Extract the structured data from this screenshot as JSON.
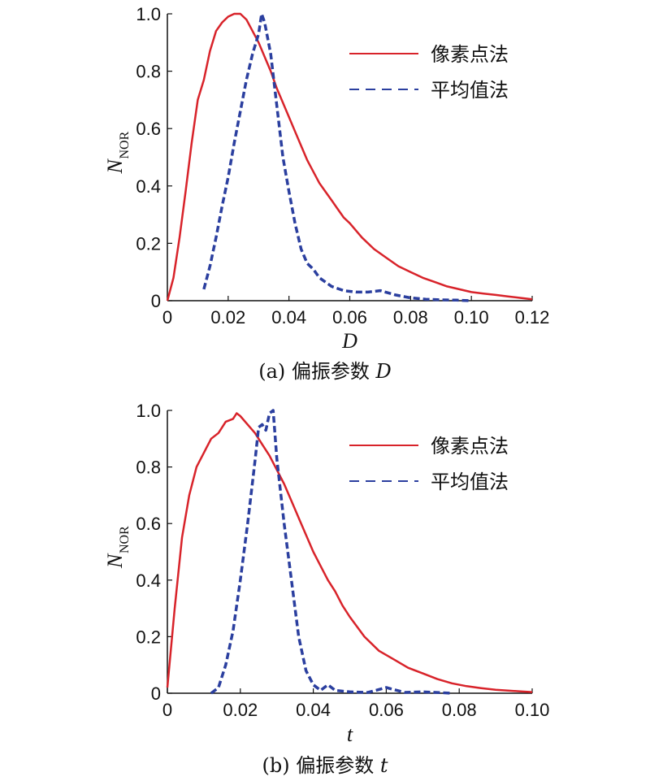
{
  "colors": {
    "series_pixel": "#d8232a",
    "series_mean": "#2b3f9f",
    "axis": "#111111"
  },
  "chart_data": [
    {
      "type": "line",
      "caption_prefix": "(a) 偏振参数 ",
      "caption_var": "D",
      "xlabel": "D",
      "ylabel_main": "N",
      "ylabel_sub": "NOR",
      "xlim": [
        0,
        0.12
      ],
      "ylim": [
        0,
        1.0
      ],
      "xticks": [
        "0",
        "0.02",
        "0.04",
        "0.06",
        "0.08",
        "0.10",
        "0.12"
      ],
      "yticks": [
        "0",
        "0.2",
        "0.4",
        "0.6",
        "0.8",
        "1.0"
      ],
      "legend_position": "top-right",
      "series": [
        {
          "name": "像素点法",
          "style": "solid",
          "x": [
            0,
            0.002,
            0.004,
            0.006,
            0.008,
            0.01,
            0.012,
            0.014,
            0.016,
            0.018,
            0.02,
            0.022,
            0.024,
            0.026,
            0.028,
            0.03,
            0.032,
            0.034,
            0.036,
            0.038,
            0.04,
            0.042,
            0.044,
            0.046,
            0.048,
            0.05,
            0.052,
            0.054,
            0.056,
            0.058,
            0.06,
            0.064,
            0.068,
            0.072,
            0.076,
            0.08,
            0.084,
            0.088,
            0.092,
            0.096,
            0.1,
            0.104,
            0.108,
            0.112,
            0.116,
            0.12
          ],
          "y": [
            0,
            0.08,
            0.22,
            0.38,
            0.55,
            0.7,
            0.77,
            0.87,
            0.94,
            0.97,
            0.99,
            1.0,
            1.0,
            0.98,
            0.94,
            0.9,
            0.85,
            0.8,
            0.74,
            0.69,
            0.64,
            0.59,
            0.54,
            0.49,
            0.45,
            0.41,
            0.38,
            0.35,
            0.32,
            0.29,
            0.27,
            0.22,
            0.18,
            0.15,
            0.12,
            0.1,
            0.08,
            0.065,
            0.05,
            0.04,
            0.03,
            0.025,
            0.02,
            0.015,
            0.01,
            0.005
          ]
        },
        {
          "name": "平均值法",
          "style": "dashed",
          "x": [
            0.012,
            0.014,
            0.016,
            0.018,
            0.02,
            0.022,
            0.024,
            0.026,
            0.028,
            0.03,
            0.031,
            0.032,
            0.034,
            0.036,
            0.038,
            0.04,
            0.042,
            0.044,
            0.046,
            0.048,
            0.05,
            0.054,
            0.058,
            0.062,
            0.066,
            0.07,
            0.075,
            0.08,
            0.085,
            0.09,
            0.095,
            0.1
          ],
          "y": [
            0.04,
            0.12,
            0.22,
            0.33,
            0.43,
            0.55,
            0.66,
            0.77,
            0.86,
            0.93,
            1.0,
            0.97,
            0.86,
            0.68,
            0.5,
            0.38,
            0.27,
            0.18,
            0.13,
            0.11,
            0.08,
            0.05,
            0.035,
            0.03,
            0.03,
            0.035,
            0.02,
            0.01,
            0.005,
            0.003,
            0.002,
            0
          ]
        }
      ]
    },
    {
      "type": "line",
      "caption_prefix": "(b) 偏振参数 ",
      "caption_var": "t",
      "xlabel": "t",
      "ylabel_main": "N",
      "ylabel_sub": "NOR",
      "xlim": [
        0,
        0.1
      ],
      "ylim": [
        0,
        1.0
      ],
      "xticks": [
        "0",
        "0.02",
        "0.04",
        "0.06",
        "0.08",
        "0.10"
      ],
      "yticks": [
        "0",
        "0.2",
        "0.4",
        "0.6",
        "0.8",
        "1.0"
      ],
      "legend_position": "top-right",
      "series": [
        {
          "name": "像素点法",
          "style": "solid",
          "x": [
            0,
            0.002,
            0.004,
            0.006,
            0.008,
            0.01,
            0.012,
            0.014,
            0.016,
            0.018,
            0.019,
            0.02,
            0.022,
            0.024,
            0.026,
            0.028,
            0.03,
            0.032,
            0.034,
            0.036,
            0.038,
            0.04,
            0.042,
            0.044,
            0.046,
            0.048,
            0.05,
            0.054,
            0.058,
            0.062,
            0.066,
            0.07,
            0.074,
            0.078,
            0.082,
            0.086,
            0.09,
            0.095,
            0.1
          ],
          "y": [
            0.02,
            0.3,
            0.55,
            0.7,
            0.8,
            0.85,
            0.9,
            0.92,
            0.96,
            0.97,
            0.99,
            0.98,
            0.95,
            0.92,
            0.88,
            0.84,
            0.79,
            0.74,
            0.68,
            0.62,
            0.56,
            0.5,
            0.45,
            0.4,
            0.36,
            0.31,
            0.27,
            0.2,
            0.15,
            0.12,
            0.09,
            0.07,
            0.05,
            0.035,
            0.025,
            0.018,
            0.012,
            0.008,
            0.004
          ]
        },
        {
          "name": "平均值法",
          "style": "dashed",
          "x": [
            0.012,
            0.014,
            0.016,
            0.018,
            0.02,
            0.022,
            0.024,
            0.025,
            0.026,
            0.027,
            0.028,
            0.029,
            0.03,
            0.032,
            0.034,
            0.036,
            0.038,
            0.04,
            0.042,
            0.044,
            0.046,
            0.05,
            0.055,
            0.06,
            0.065,
            0.07,
            0.075,
            0.078
          ],
          "y": [
            0,
            0.02,
            0.1,
            0.22,
            0.4,
            0.6,
            0.82,
            0.94,
            0.95,
            0.93,
            0.99,
            1.0,
            0.83,
            0.6,
            0.4,
            0.2,
            0.08,
            0.03,
            0.01,
            0.03,
            0.01,
            0.005,
            0.003,
            0.02,
            0.003,
            0.005,
            0.002,
            0
          ]
        }
      ]
    }
  ]
}
